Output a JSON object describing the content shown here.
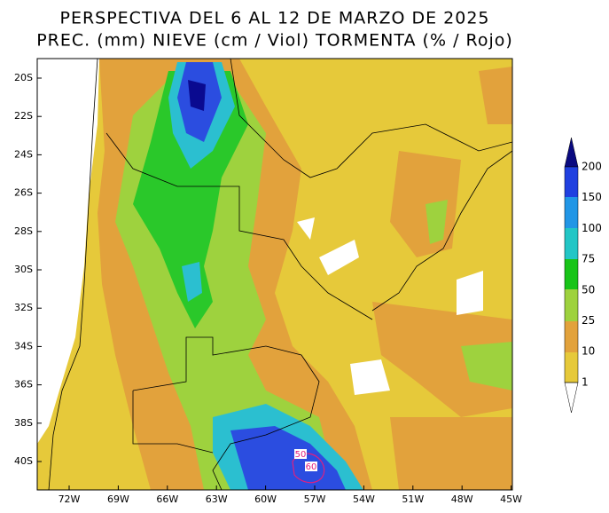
{
  "header": {
    "title_line1": "PERSPECTIVA DEL 6 AL 12 DE MARZO DE 2025",
    "title_line2": "PREC. (mm) NIEVE (cm / Viol) TORMENTA (% / Rojo)"
  },
  "map": {
    "lat_labels": [
      "20S",
      "22S",
      "24S",
      "26S",
      "28S",
      "30S",
      "32S",
      "34S",
      "36S",
      "38S",
      "40S"
    ],
    "lon_labels": [
      "72W",
      "69W",
      "66W",
      "63W",
      "60W",
      "57W",
      "54W",
      "51W",
      "48W",
      "45W"
    ],
    "annotations": [
      "50",
      "60"
    ]
  },
  "legend": {
    "labels": [
      "200",
      "150",
      "100",
      "75",
      "50",
      "25",
      "10",
      "1"
    ]
  }
}
